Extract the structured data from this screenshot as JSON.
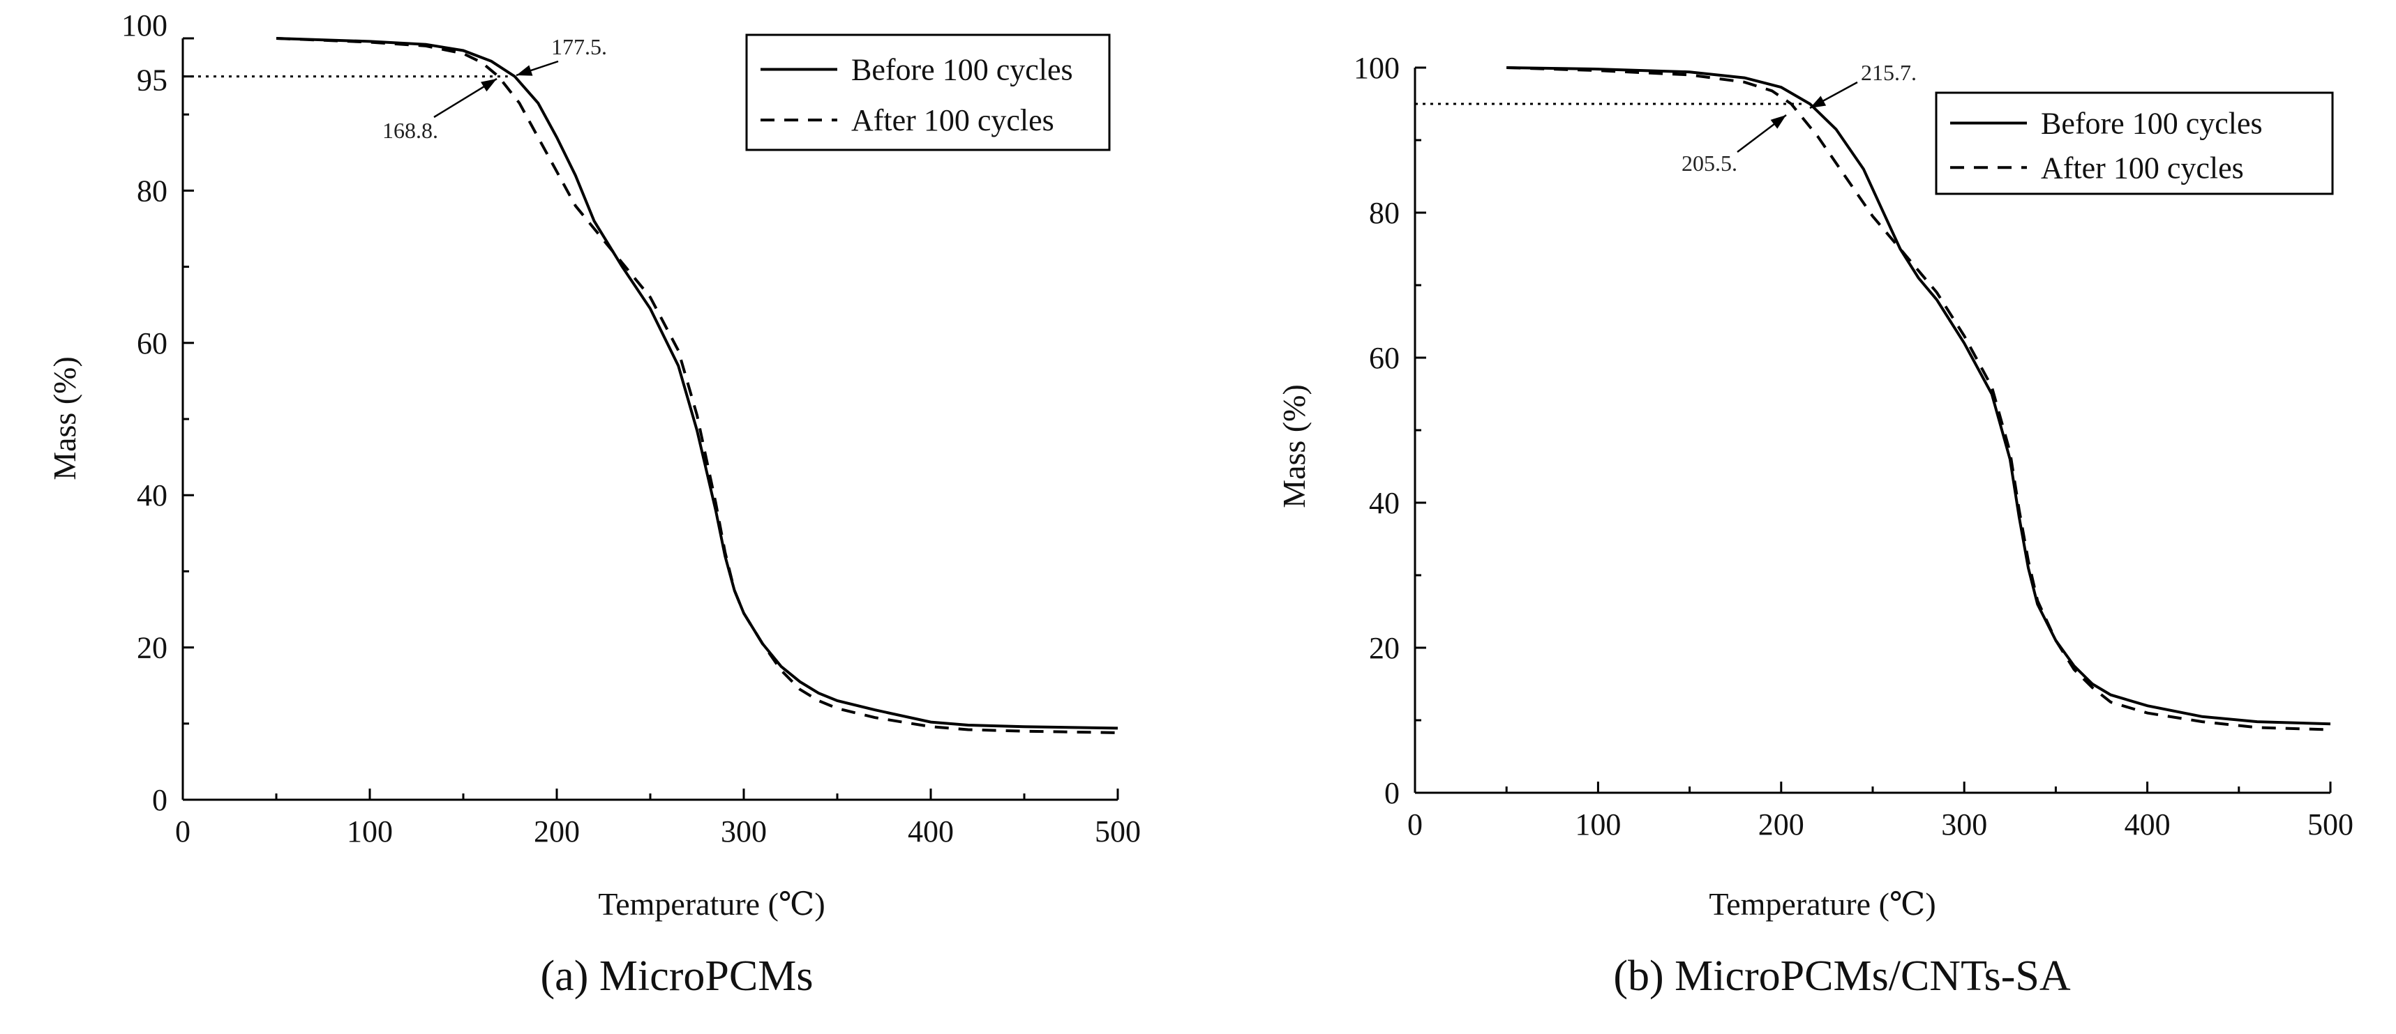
{
  "chart_data": [
    {
      "type": "line",
      "caption": "(a) MicroPCMs",
      "xlabel": "Temperature (℃)",
      "ylabel": "Mass (%)",
      "xlim": [
        0,
        500
      ],
      "ylim": [
        0,
        100
      ],
      "xticks": [
        0,
        100,
        200,
        300,
        400,
        500
      ],
      "yticks": [
        0,
        20,
        40,
        60,
        80,
        95,
        100
      ],
      "reference_y": 95,
      "legend_position": "top-right",
      "series": [
        {
          "name": "Before 100 cycles",
          "style": "solid",
          "x": [
            50,
            100,
            130,
            150,
            165,
            177.5,
            190,
            200,
            210,
            220,
            235,
            250,
            265,
            275,
            285,
            290,
            295,
            300,
            310,
            320,
            330,
            340,
            350,
            370,
            400,
            420,
            450,
            500
          ],
          "y": [
            100,
            99.6,
            99.2,
            98.4,
            97,
            95,
            91.5,
            87,
            82,
            76,
            70,
            64.5,
            57,
            48.5,
            38,
            32,
            27.5,
            24.5,
            20.5,
            17.5,
            15.5,
            14,
            13,
            11.8,
            10.2,
            9.8,
            9.6,
            9.4
          ]
        },
        {
          "name": "After 100 cycles",
          "style": "dashed",
          "x": [
            50,
            100,
            130,
            150,
            160,
            168.8,
            180,
            190,
            200,
            210,
            220,
            235,
            250,
            265,
            275,
            285,
            290,
            295,
            300,
            310,
            320,
            330,
            340,
            350,
            370,
            400,
            420,
            450,
            500
          ],
          "y": [
            100,
            99.5,
            99,
            98,
            96.8,
            95,
            91.5,
            87,
            82.5,
            78,
            75,
            70.5,
            66,
            59,
            50.5,
            39,
            32.5,
            27.5,
            24.5,
            20.5,
            17,
            14.5,
            13,
            12,
            10.8,
            9.6,
            9.2,
            9,
            8.8
          ]
        }
      ],
      "annotations": [
        {
          "text": "177.5.",
          "x": 177.5,
          "y": 95
        },
        {
          "text": "168.8.",
          "x": 168.8,
          "y": 95
        }
      ],
      "legend_labels": [
        "Before 100 cycles",
        "After 100 cycles"
      ]
    },
    {
      "type": "line",
      "caption": "(b) MicroPCMs/CNTs-SA",
      "xlabel": "Temperature (℃)",
      "ylabel": "Mass (%)",
      "xlim": [
        0,
        500
      ],
      "ylim": [
        0,
        100
      ],
      "xticks": [
        0,
        100,
        200,
        300,
        400,
        500
      ],
      "yticks": [
        0,
        20,
        40,
        60,
        80,
        100
      ],
      "reference_y": 95,
      "legend_position": "top-right",
      "series": [
        {
          "name": "Before 100 cycles",
          "style": "solid",
          "x": [
            50,
            100,
            150,
            180,
            200,
            215.7,
            230,
            245,
            255,
            265,
            275,
            285,
            300,
            315,
            325,
            330,
            335,
            340,
            350,
            360,
            370,
            380,
            400,
            430,
            460,
            500
          ],
          "y": [
            100,
            99.8,
            99.4,
            98.6,
            97.3,
            95,
            91.5,
            86,
            80.5,
            75,
            71,
            68,
            62,
            55,
            46,
            38,
            31,
            26,
            21,
            17.5,
            15,
            13.5,
            12,
            10.5,
            9.8,
            9.5
          ]
        },
        {
          "name": "After 100 cycles",
          "style": "dashed",
          "x": [
            50,
            100,
            150,
            180,
            195,
            205.5,
            220,
            235,
            250,
            265,
            275,
            285,
            300,
            315,
            325,
            330,
            335,
            340,
            350,
            360,
            370,
            380,
            400,
            430,
            460,
            500
          ],
          "y": [
            100,
            99.6,
            99,
            98,
            96.8,
            95,
            90.5,
            85,
            79.5,
            75,
            72,
            69,
            63,
            56,
            47,
            39,
            32,
            26.5,
            21,
            17,
            14.5,
            12.5,
            11,
            9.8,
            9,
            8.7
          ]
        }
      ],
      "annotations": [
        {
          "text": "215.7.",
          "x": 215.7,
          "y": 95
        },
        {
          "text": "205.5.",
          "x": 205.5,
          "y": 95
        }
      ],
      "legend_labels": [
        "Before 100 cycles",
        "After 100 cycles"
      ]
    }
  ]
}
